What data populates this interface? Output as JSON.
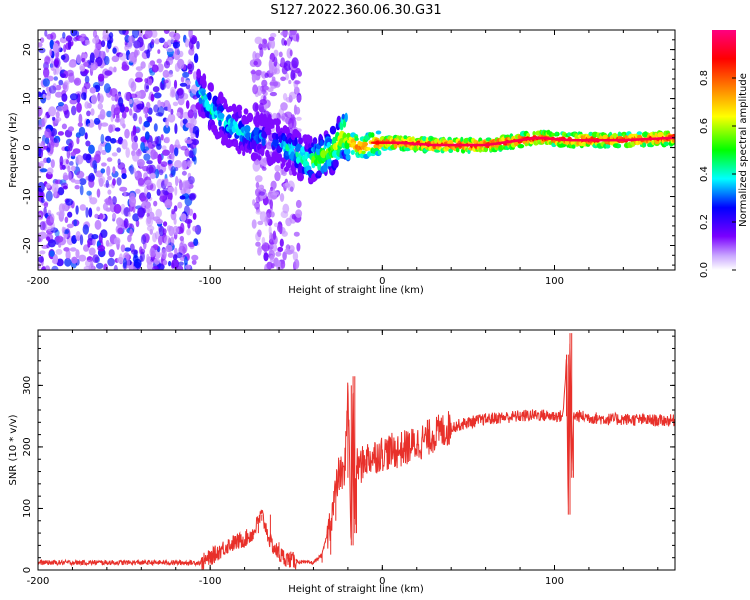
{
  "title": "S127.2022.360.06.30.G31",
  "chart_data": [
    {
      "type": "heatmap",
      "panel": "spectrogram",
      "xlabel": "Height of straight line (km)",
      "ylabel": "Frequency (Hz)",
      "xlim": [
        -200,
        170
      ],
      "ylim": [
        -25,
        24
      ],
      "xticks": [
        -200,
        -100,
        0,
        100
      ],
      "xtick_labels": [
        "-200",
        "-100",
        "0",
        "100"
      ],
      "yticks": [
        -20,
        -10,
        0,
        10,
        20
      ],
      "ytick_labels": [
        "-20",
        "-10",
        "0",
        "10",
        "20"
      ],
      "colorbar": {
        "label": "Normalized spectral amplitude",
        "range": [
          0,
          1
        ],
        "ticks": [
          0.0,
          0.2,
          0.4,
          0.6,
          0.8
        ],
        "tick_labels": [
          "0.0",
          "0.2",
          "0.4",
          "0.6",
          "0.8"
        ],
        "colors": [
          "#ffffff",
          "#7a00ff",
          "#0000ff",
          "#00ffff",
          "#00ff00",
          "#ffff00",
          "#ff8000",
          "#ff0000",
          "#ff0080"
        ]
      },
      "ridge": {
        "x": [
          -107,
          -100,
          -90,
          -80,
          -70,
          -60,
          -50,
          -42,
          -36,
          -30,
          -25,
          -22,
          -18,
          -12,
          -5,
          0,
          10,
          30,
          60,
          90,
          110,
          140,
          170
        ],
        "frequency": [
          12,
          8,
          5,
          3,
          2,
          1,
          -1,
          -3,
          -2,
          -1,
          1,
          3,
          1,
          0,
          1,
          1,
          1,
          0.5,
          0.5,
          2,
          1.5,
          1.5,
          2
        ],
        "amplitude": [
          0.45,
          0.5,
          0.45,
          0.45,
          0.4,
          0.4,
          0.5,
          0.55,
          0.6,
          0.6,
          0.7,
          0.7,
          0.8,
          0.85,
          0.85,
          0.9,
          0.95,
          0.95,
          0.95,
          0.95,
          0.95,
          0.95,
          0.95
        ]
      },
      "noise_regions": [
        {
          "x_range": [
            -200,
            -107
          ],
          "frequency_range": [
            -25,
            24
          ],
          "amplitude": [
            0.05,
            0.3
          ]
        },
        {
          "x_range": [
            -75,
            -48
          ],
          "frequency_range": [
            -25,
            24
          ],
          "amplitude": [
            0.05,
            0.15
          ]
        }
      ]
    },
    {
      "type": "line",
      "panel": "snr",
      "xlabel": "Height of straight line (km)",
      "ylabel": "SNR (10 * v/v)",
      "xlim": [
        -200,
        170
      ],
      "ylim": [
        0,
        390
      ],
      "xticks": [
        -200,
        -100,
        0,
        100
      ],
      "xtick_labels": [
        "-200",
        "-100",
        "0",
        "100"
      ],
      "yticks": [
        0,
        100,
        200,
        300
      ],
      "ytick_labels": [
        "0",
        "100",
        "200",
        "300"
      ],
      "series": [
        {
          "name": "SNR",
          "color": "#e8302a",
          "x": [
            -200,
            -180,
            -160,
            -140,
            -120,
            -105,
            -100,
            -95,
            -90,
            -85,
            -80,
            -75,
            -72,
            -70,
            -65,
            -60,
            -55,
            -50,
            -45,
            -40,
            -35,
            -30,
            -27,
            -25,
            -22,
            -20,
            -18,
            -17,
            -16,
            -15,
            -12,
            -10,
            -5,
            0,
            10,
            20,
            30,
            40,
            50,
            60,
            70,
            80,
            90,
            100,
            105,
            107,
            108,
            109,
            110,
            111,
            112,
            115,
            120,
            130,
            140,
            150,
            160,
            170
          ],
          "y": [
            12,
            12,
            12,
            12,
            12,
            12,
            20,
            30,
            40,
            45,
            50,
            60,
            80,
            90,
            45,
            25,
            18,
            14,
            12,
            12,
            25,
            80,
            130,
            160,
            150,
            300,
            40,
            315,
            60,
            170,
            170,
            180,
            185,
            190,
            195,
            205,
            220,
            232,
            240,
            245,
            248,
            250,
            252,
            250,
            250,
            350,
            90,
            385,
            150,
            250,
            250,
            250,
            248,
            245,
            245,
            244,
            243,
            243
          ]
        }
      ]
    }
  ]
}
